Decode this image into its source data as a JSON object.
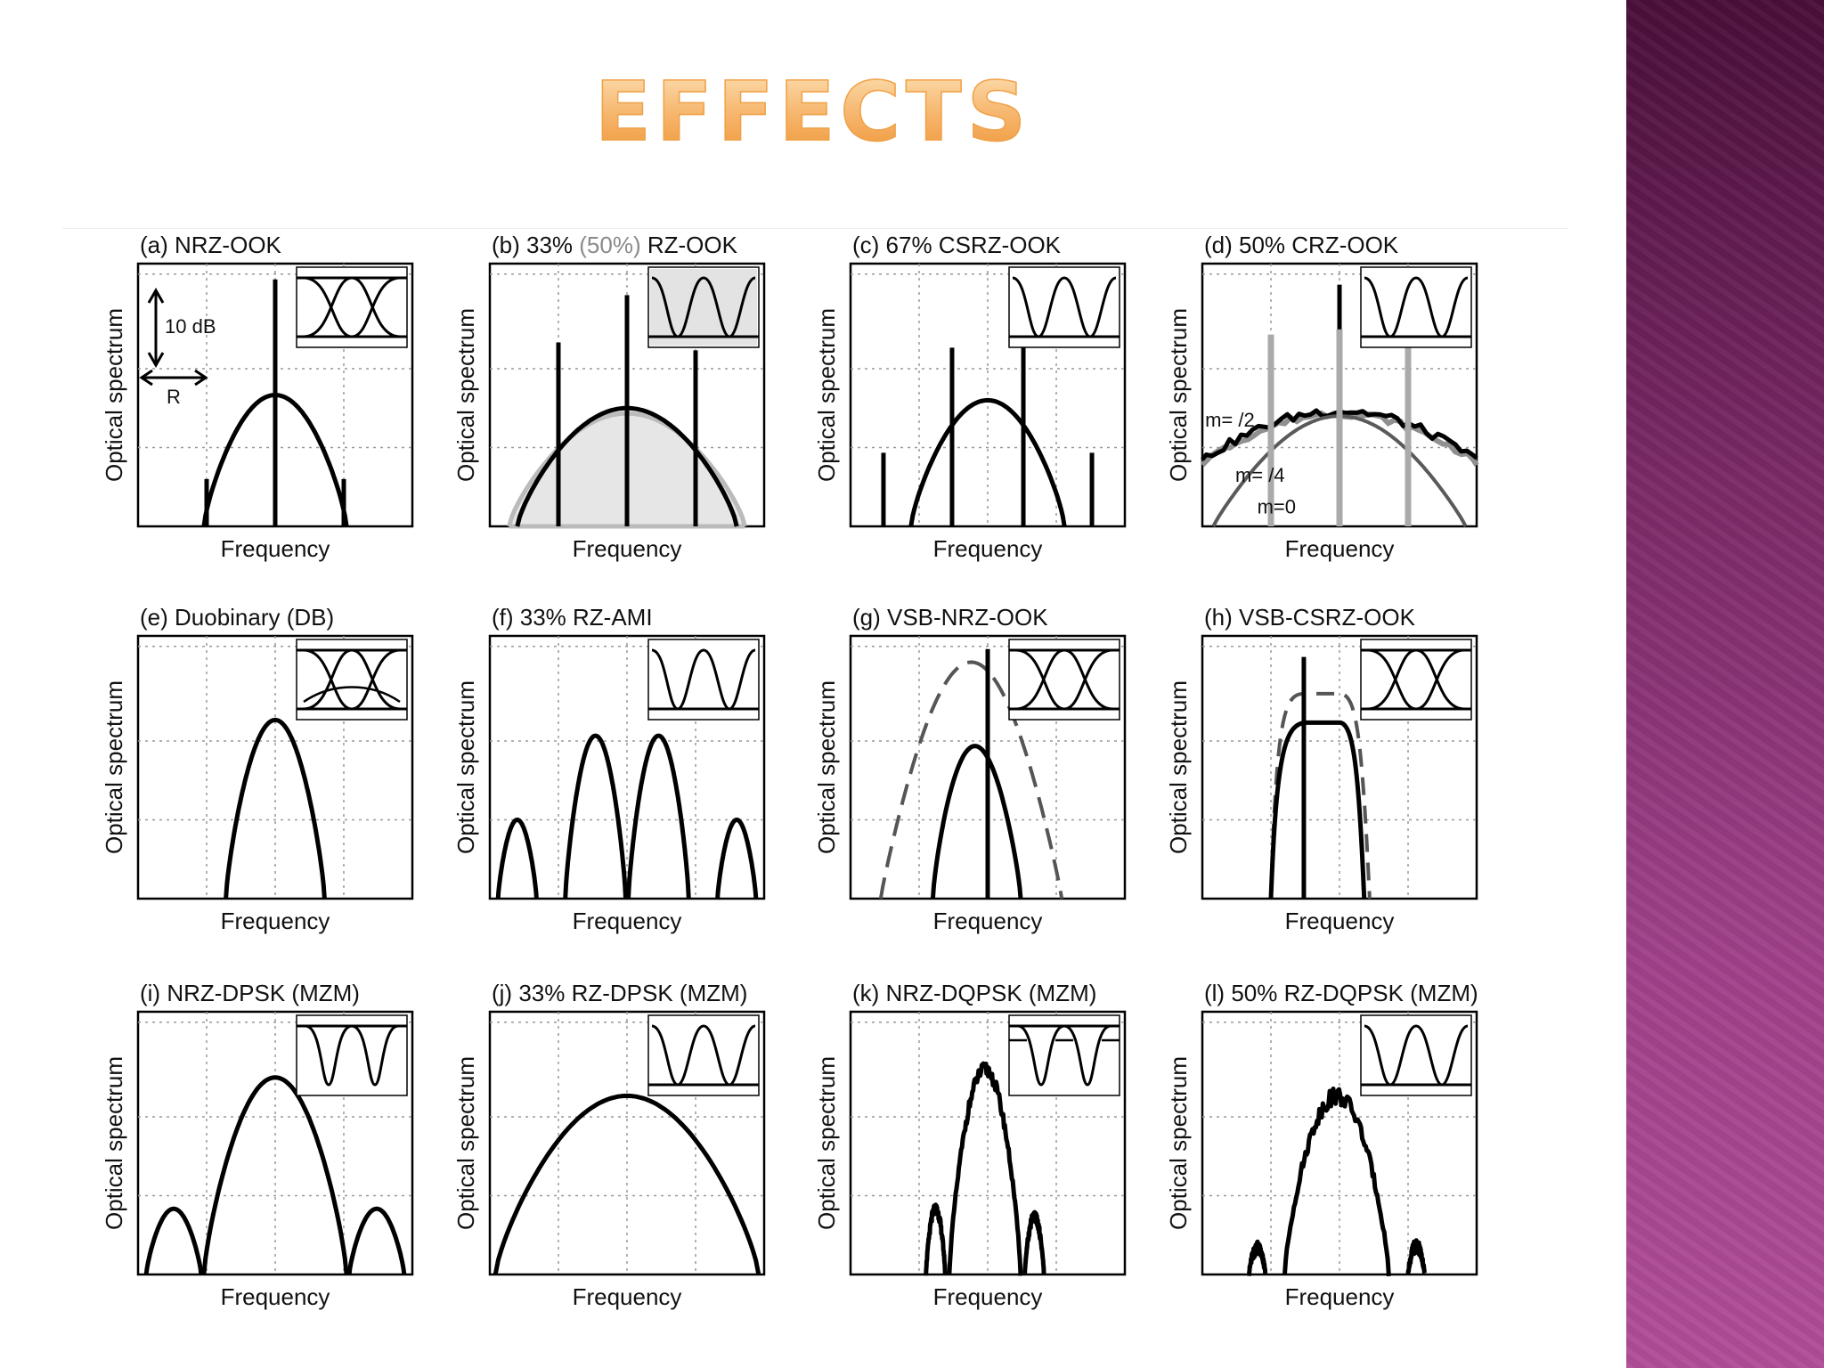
{
  "slide": {
    "title": "EFFECTS",
    "accent_color": "#f0a24a",
    "sidebar_colors": [
      "#4a0f3a",
      "#b04e98"
    ]
  },
  "chart_data": [
    {
      "id": "a",
      "type": "line",
      "title": "(a) NRZ-OOK",
      "xlabel": "Frequency",
      "ylabel": "Optical spectrum",
      "annotations": [
        "10 dB",
        "R"
      ],
      "eye_inset": "nrz-eye",
      "spectrum": "main lobe peaking at carrier with central carrier tone and clock tones at ±R"
    },
    {
      "id": "b",
      "type": "line",
      "title_parts": [
        "(b) 33% ",
        "(50%)",
        " RZ-OOK"
      ],
      "xlabel": "Frequency",
      "ylabel": "Optical spectrum",
      "eye_inset": "rz-pulses-shaded",
      "series": [
        {
          "name": "33% RZ-OOK",
          "color": "#000000"
        },
        {
          "name": "50% RZ-OOK",
          "color": "#bbbbbb"
        }
      ],
      "spectrum": "broad lobe with carrier tone and tones at ±R"
    },
    {
      "id": "c",
      "type": "line",
      "title": "(c) 67% CSRZ-OOK",
      "xlabel": "Frequency",
      "ylabel": "Optical spectrum",
      "eye_inset": "rz-pulses",
      "spectrum": "lobe without carrier, tones at ±R/2 and ±3R/2"
    },
    {
      "id": "d",
      "type": "line",
      "title": "(d) 50% CRZ-OOK",
      "xlabel": "Frequency",
      "ylabel": "Optical spectrum",
      "eye_inset": "rz-pulses",
      "series": [
        {
          "name": "m=  /2",
          "color": "#000000"
        },
        {
          "name": "m=  /4",
          "color": "#909090"
        },
        {
          "name": "m=0",
          "color": "#5a5a5a"
        }
      ]
    },
    {
      "id": "e",
      "type": "line",
      "title": "(e) Duobinary (DB)",
      "xlabel": "Frequency",
      "ylabel": "Optical spectrum",
      "eye_inset": "duobinary-eye",
      "spectrum": "narrow single lobe"
    },
    {
      "id": "f",
      "type": "line",
      "title": "(f) 33% RZ-AMI",
      "xlabel": "Frequency",
      "ylabel": "Optical spectrum",
      "eye_inset": "rz-pulses",
      "spectrum": "two main lobes with spectral null at carrier, side lobes"
    },
    {
      "id": "g",
      "type": "line",
      "title": "(g) VSB-NRZ-OOK",
      "xlabel": "Frequency",
      "ylabel": "Optical spectrum",
      "eye_inset": "nrz-eye",
      "spectrum": "single-sideband filtered lobe, dashed filter response"
    },
    {
      "id": "h",
      "type": "line",
      "title": "(h) VSB-CSRZ-OOK",
      "xlabel": "Frequency",
      "ylabel": "Optical spectrum",
      "eye_inset": "nrz-eye",
      "spectrum": "filtered lobe with tone, dashed filter response"
    },
    {
      "id": "i",
      "type": "line",
      "title": "(i) NRZ-DPSK (MZM)",
      "xlabel": "Frequency",
      "ylabel": "Optical spectrum",
      "eye_inset": "dpsk-dips",
      "spectrum": "wide main lobe with side lobes"
    },
    {
      "id": "j",
      "type": "line",
      "title": "(j) 33% RZ-DPSK (MZM)",
      "xlabel": "Frequency",
      "ylabel": "Optical spectrum",
      "eye_inset": "rz-pulses",
      "spectrum": "very wide main lobe"
    },
    {
      "id": "k",
      "type": "line",
      "title": "(k) NRZ-DQPSK (MZM)",
      "xlabel": "Frequency",
      "ylabel": "Optical spectrum",
      "eye_inset": "dqpsk-dips",
      "spectrum": "narrow noisy main lobe with small side lobes"
    },
    {
      "id": "l",
      "type": "line",
      "title": "(l) 50% RZ-DQPSK (MZM)",
      "xlabel": "Frequency",
      "ylabel": "Optical spectrum",
      "eye_inset": "rz-pulses",
      "spectrum": "noisy main lobe with small side lobes"
    }
  ]
}
